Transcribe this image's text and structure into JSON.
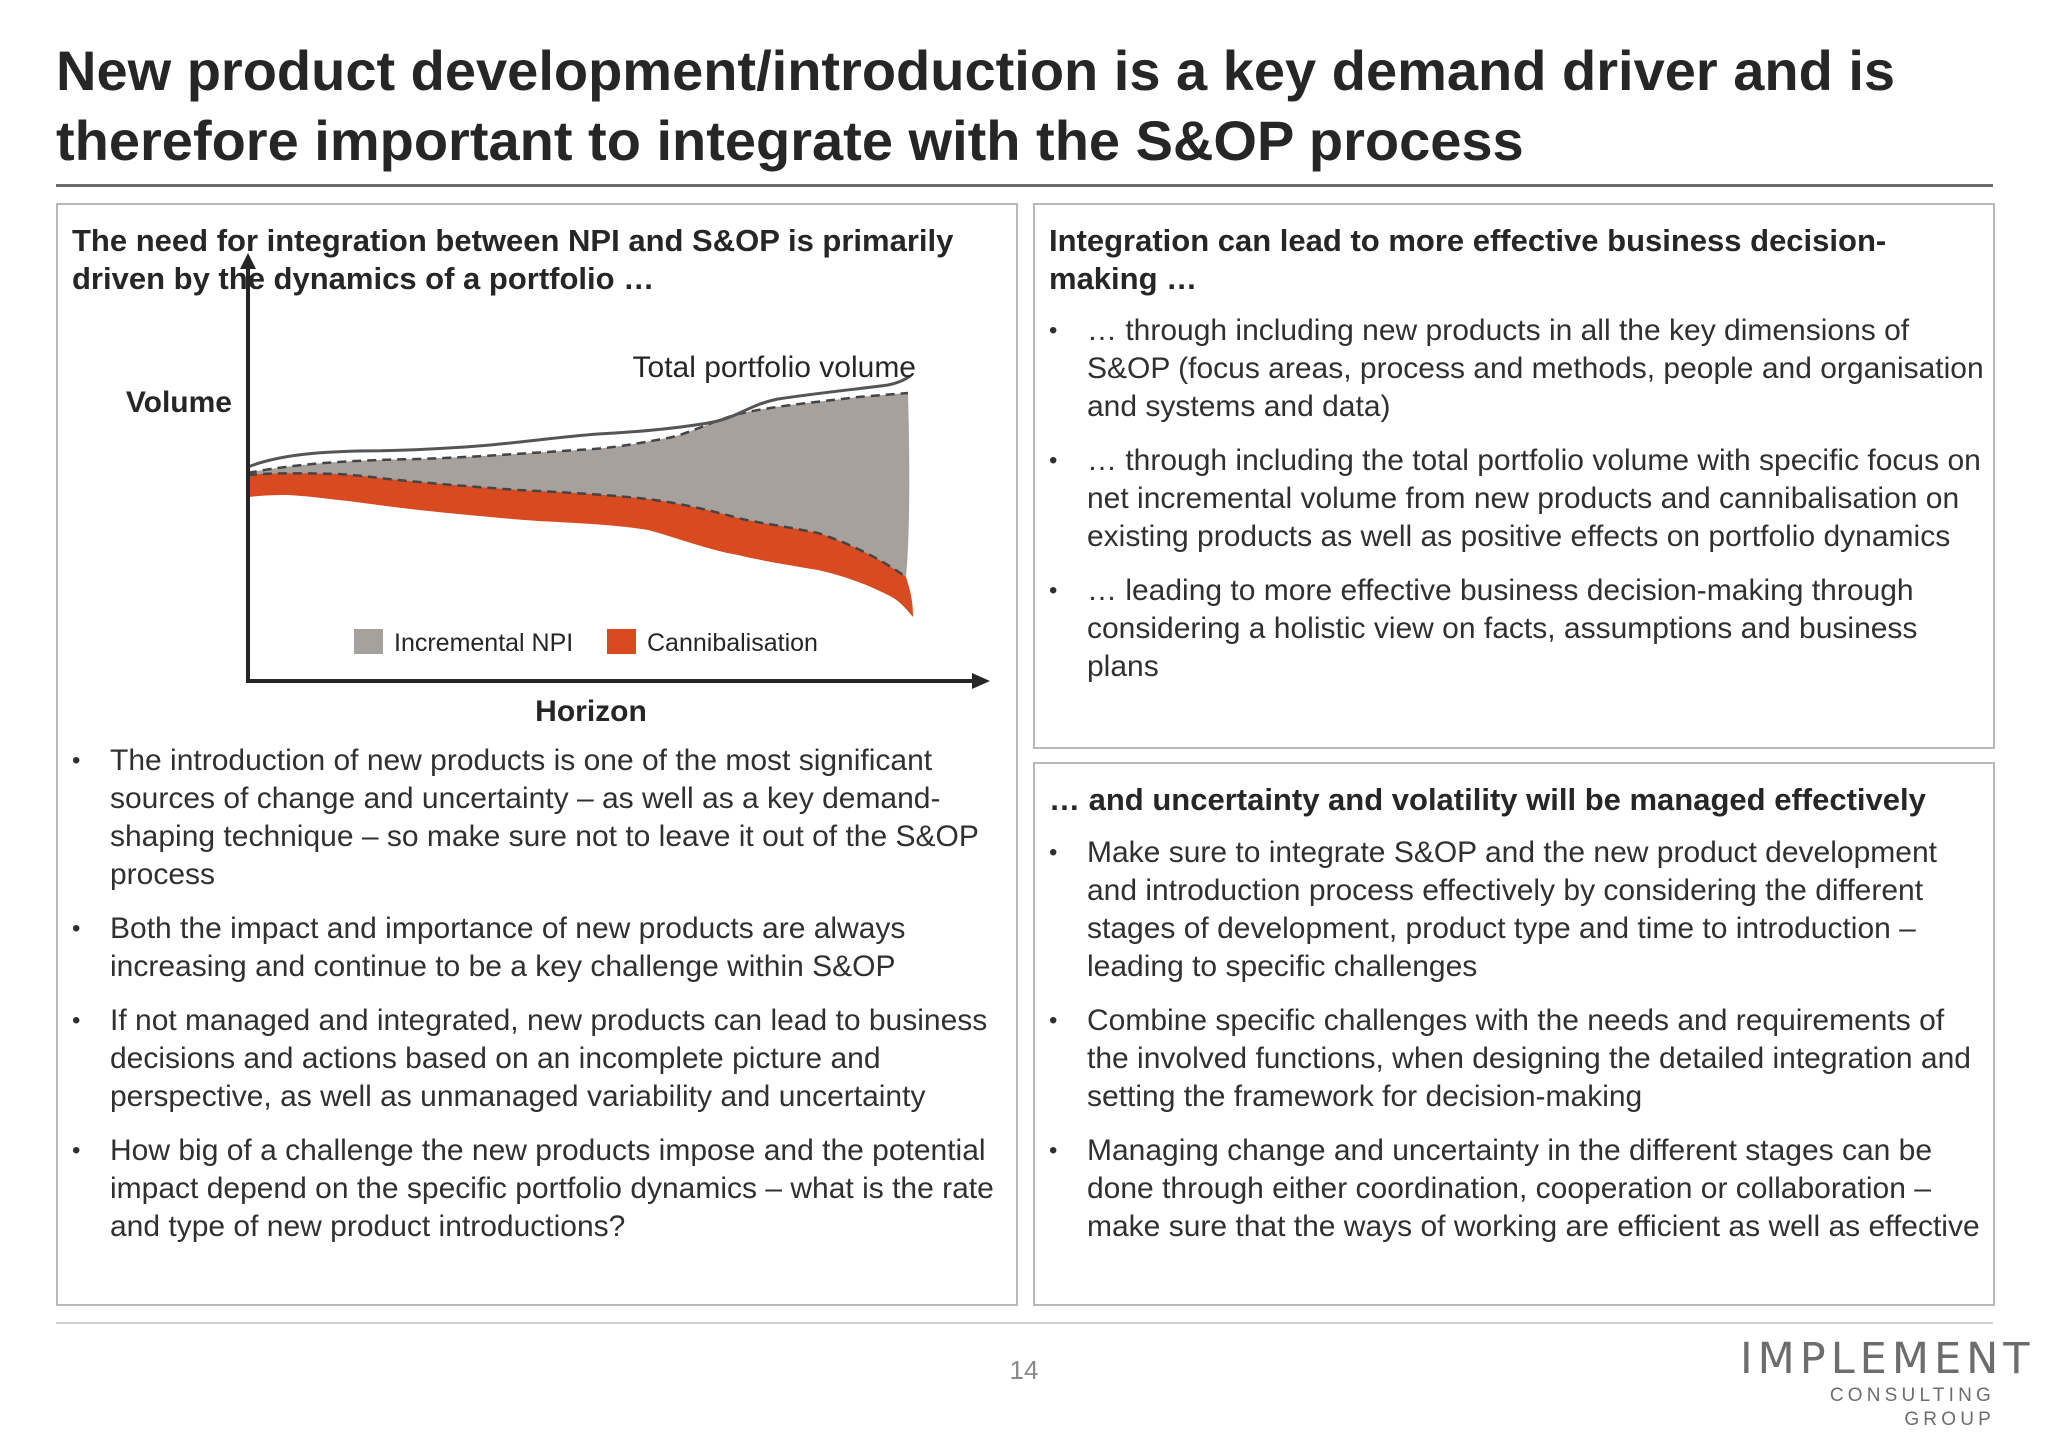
{
  "title": "New product development/introduction is a key demand driver and is therefore important to integrate with the S&OP process",
  "left_panel": {
    "heading": "The need for integration between NPI and S&OP is primarily driven by the dynamics of a portfolio …",
    "bullets": [
      "The introduction of new products is one of the most significant sources of change and uncertainty – as well as a key demand-shaping technique – so make sure not to leave it out of the S&OP process",
      "Both the impact and importance of new products are always increasing and continue to be a key challenge within S&OP",
      "If not managed and integrated, new products can lead to business decisions and actions based on an incomplete picture and perspective, as well as unmanaged variability and uncertainty",
      "How big of a challenge the new products impose and the potential impact depend on the specific portfolio dynamics – what is the rate and type of new product introductions?"
    ]
  },
  "chart_data": {
    "type": "area",
    "ylabel": "Volume",
    "xlabel": "Horizon",
    "annotation": "Total portfolio volume",
    "legend": [
      {
        "name": "Incremental NPI",
        "color": "#a7a19e"
      },
      {
        "name": "Cannibalisation",
        "color": "#d84b20"
      }
    ],
    "legend_position": "bottom-center",
    "grid": false,
    "axis_tick_labels": false,
    "colors": {
      "incremental_npi": "#a7a19e",
      "cannibalisation": "#d84b20",
      "total_line": "#555555",
      "axis": "#262626"
    }
  },
  "right_top_panel": {
    "heading": "Integration can lead to more effective business decision-making …",
    "bullets": [
      "… through including new products in all the key dimensions of S&OP (focus areas, process and methods, people and organisation and systems and data)",
      "… through including the total portfolio volume with specific focus on net incremental volume from new products and cannibalisation on existing products as well as positive effects on portfolio dynamics",
      "… leading to more effective business decision-making through considering a holistic view on facts, assumptions and business plans"
    ]
  },
  "right_bottom_panel": {
    "heading": "… and uncertainty and volatility will be managed effectively",
    "bullets": [
      "Make sure to integrate S&OP and the new product development and introduction process effectively by considering the different stages of development, product type and time to introduction – leading to specific challenges",
      "Combine specific challenges with the needs and requirements of the involved functions, when designing the detailed integration and setting the framework for decision-making",
      "Managing change and uncertainty in the different stages can be done through either coordination, cooperation or collaboration – make sure that the ways of working are efficient as well as effective"
    ]
  },
  "footer": {
    "page_number": "14",
    "logo_line1": "IMPLEMENT",
    "logo_line2": "CONSULTING GROUP"
  }
}
